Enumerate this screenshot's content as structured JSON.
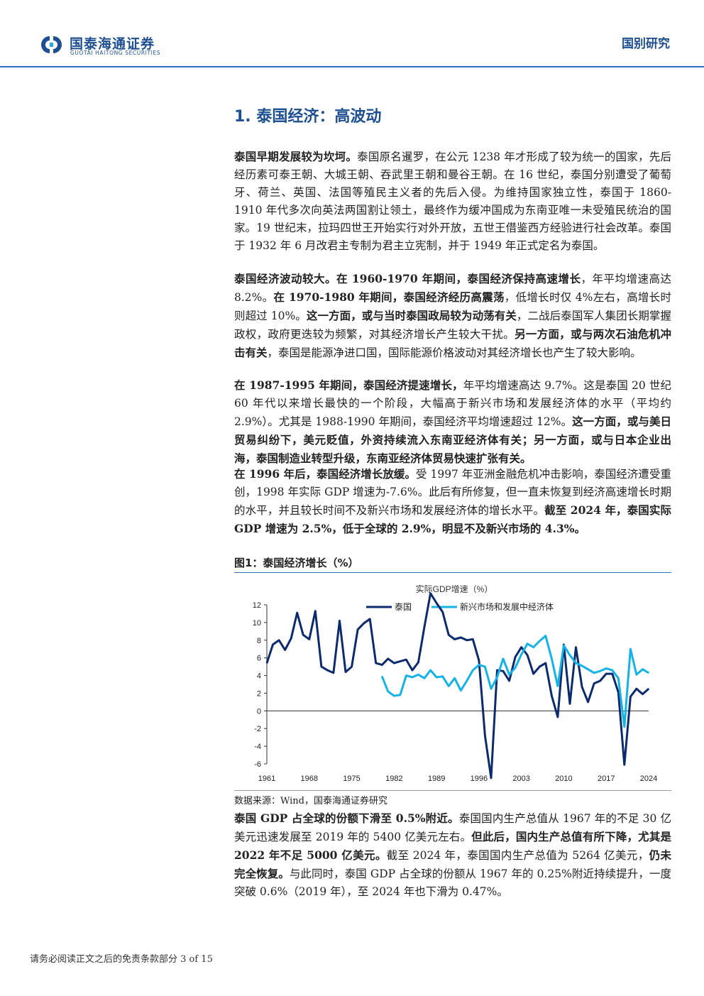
{
  "header": {
    "logo_cn": "国泰海通证券",
    "logo_en": "GUOTAI HAITONG SECURITIES",
    "report_type": "国别研究"
  },
  "section": {
    "title": "1. 泰国经济：高波动"
  },
  "paragraphs": [
    {
      "runs": [
        {
          "text": "泰国早期发展较为坎坷。",
          "bold": true
        },
        {
          "text": "泰国原名暹罗，在公元 1238 年才形成了较为统一的国家，先后经历素可泰王朝、大城王朝、吞武里王朝和曼谷王朝。在 16 世纪，泰国分别遭受了葡萄牙、荷兰、英国、法国等殖民主义者的先后入侵。为维持国家独立性，泰国于 1860-1910 年代多次向英法两国割让领土，最终作为缓冲国成为东南亚唯一未受殖民统治的国家。19 世纪末，拉玛四世王开始实行对外开放，五世王借鉴西方经验进行社会改革。泰国于 1932 年 6 月改君主专制为君主立宪制，并于 1949 年正式定名为泰国。",
          "bold": false
        }
      ]
    },
    {
      "runs": [
        {
          "text": "泰国经济波动较大。在 1960-1970 年期间，泰国经济保持高速增长",
          "bold": true
        },
        {
          "text": "，年平均增速高达 8.2%。",
          "bold": false
        },
        {
          "text": "在 1970-1980 年期间，泰国经济经历高震荡",
          "bold": true
        },
        {
          "text": "，低增长时仅 4%左右，高增长时则超过 10%。",
          "bold": false
        },
        {
          "text": "这一方面，或与当时泰国政局较为动荡有关",
          "bold": true
        },
        {
          "text": "，二战后泰国军人集团长期掌握政权，政府更迭较为频繁，对其经济增长产生较大干扰。",
          "bold": false
        },
        {
          "text": "另一方面，或与两次石油危机冲击有关",
          "bold": true
        },
        {
          "text": "，泰国是能源净进口国，国际能源价格波动对其经济增长也产生了较大影响。",
          "bold": false
        }
      ]
    },
    {
      "runs": [
        {
          "text": "在 1987-1995 年期间，泰国经济提速增长，",
          "bold": true
        },
        {
          "text": "年平均增速高达 9.7%。这是泰国 20 世纪 60 年代以来增长最快的一个阶段，大幅高于新兴市场和发展经济体的水平（平均约 2.9%）。尤其是 1988-1990 年期间，泰国经济平均增速超过 12%。",
          "bold": false
        },
        {
          "text": "这一方面，或与美日贸易纠纷下，美元贬值，外资持续流入东南亚经济体有关；另一方面，或与日本企业出海，泰国制造业转型升级，东南亚经济体贸易快速扩张有关。",
          "bold": true
        }
      ]
    },
    {
      "runs": [
        {
          "text": "在 1996 年后，泰国经济增长放缓。",
          "bold": true
        },
        {
          "text": "受 1997 年亚洲金融危机冲击影响，泰国经济遭受重创，1998 年实际 GDP 增速为-7.6%。此后有所修复，但一直未恢复到经济高速增长时期的水平，并且较长时间不及新兴市场和发展经济体的增长水平。",
          "bold": false
        },
        {
          "text": "截至 2024 年，泰国实际 GDP 增速为 2.5%，低于全球的 2.9%，明显不及新兴市场的 4.3%。",
          "bold": true
        }
      ]
    },
    {
      "runs": [
        {
          "text": "泰国 GDP 占全球的份额下滑至 0.5%附近。",
          "bold": true
        },
        {
          "text": "泰国国内生产总值从 1967 年的不足 30 亿美元迅速发展至 2019 年的 5400 亿美元左右。",
          "bold": false
        },
        {
          "text": "但此后，国内生产总值有所下降，尤其是 2022 年不足 5000 亿美元。",
          "bold": true
        },
        {
          "text": "截至 2024 年，泰国国内生产总值为 5264 亿美元，",
          "bold": false
        },
        {
          "text": "仍未完全恢复。",
          "bold": true
        },
        {
          "text": "与此同时，泰国 GDP 占全球的份额从 1967 年的 0.25%附近持续提升，一度突破 0.6%（2019 年），至 2024 年也下滑为 0.47%。",
          "bold": false
        }
      ]
    }
  ],
  "figure": {
    "title": "图1：泰国经济增长（%）",
    "source": "数据来源：Wind，国泰海通证券研究"
  },
  "chart_data": {
    "type": "line",
    "title": "实际GDP增速（%）",
    "xlabel": "",
    "ylabel": "",
    "xlim": [
      1961,
      2024
    ],
    "ylim": [
      -6,
      12
    ],
    "yticks": [
      "12",
      "10",
      "8",
      "6",
      "4",
      "2",
      "0",
      "-2",
      "-4",
      "-6"
    ],
    "xticks": [
      "1961",
      "1968",
      "1975",
      "1982",
      "1989",
      "1996",
      "2003",
      "2010",
      "2017",
      "2024"
    ],
    "legend_position": "top",
    "grid": false,
    "series": [
      {
        "name": "泰国",
        "color": "#0c2a6e",
        "x": [
          1961,
          1962,
          1963,
          1964,
          1965,
          1966,
          1967,
          1968,
          1969,
          1970,
          1971,
          1972,
          1973,
          1974,
          1975,
          1976,
          1977,
          1978,
          1979,
          1980,
          1981,
          1982,
          1983,
          1984,
          1985,
          1986,
          1987,
          1988,
          1989,
          1990,
          1991,
          1992,
          1993,
          1994,
          1995,
          1996,
          1997,
          1998,
          1999,
          2000,
          2001,
          2002,
          2003,
          2004,
          2005,
          2006,
          2007,
          2008,
          2009,
          2010,
          2011,
          2012,
          2013,
          2014,
          2015,
          2016,
          2017,
          2018,
          2019,
          2020,
          2021,
          2022,
          2023,
          2024
        ],
        "y": [
          5.4,
          7.5,
          8.0,
          6.9,
          8.2,
          11.1,
          8.6,
          8.1,
          11.3,
          5.0,
          4.6,
          4.3,
          10.2,
          4.4,
          5.0,
          9.2,
          9.9,
          10.4,
          5.4,
          5.2,
          5.9,
          5.4,
          5.6,
          5.8,
          4.6,
          5.5,
          9.5,
          13.3,
          12.2,
          11.2,
          8.6,
          8.1,
          8.3,
          8.0,
          8.1,
          5.7,
          -2.8,
          -7.6,
          4.6,
          4.5,
          3.4,
          6.1,
          7.2,
          6.3,
          4.2,
          5.0,
          5.4,
          1.7,
          -0.7,
          7.5,
          0.8,
          7.2,
          2.7,
          1.0,
          3.1,
          3.4,
          4.2,
          4.2,
          2.1,
          -6.1,
          1.6,
          2.5,
          1.9,
          2.5
        ]
      },
      {
        "name": "新兴市场和发展中经济体",
        "color": "#13b3e8",
        "x": [
          1980,
          1981,
          1982,
          1983,
          1984,
          1985,
          1986,
          1987,
          1988,
          1989,
          1990,
          1991,
          1992,
          1993,
          1994,
          1995,
          1996,
          1997,
          1998,
          1999,
          2000,
          2001,
          2002,
          2003,
          2004,
          2005,
          2006,
          2007,
          2008,
          2009,
          2010,
          2011,
          2012,
          2013,
          2014,
          2015,
          2016,
          2017,
          2018,
          2019,
          2020,
          2021,
          2022,
          2023,
          2024
        ],
        "y": [
          3.9,
          2.2,
          1.7,
          1.8,
          4.0,
          3.8,
          4.1,
          3.7,
          4.6,
          3.8,
          3.9,
          2.8,
          3.7,
          2.3,
          3.4,
          4.6,
          5.2,
          5.0,
          2.5,
          3.8,
          5.9,
          4.1,
          4.9,
          6.4,
          7.6,
          7.2,
          7.9,
          8.5,
          5.9,
          2.8,
          7.4,
          6.3,
          5.4,
          5.1,
          4.7,
          4.3,
          4.5,
          4.8,
          4.6,
          3.7,
          -1.8,
          7.0,
          4.1,
          4.7,
          4.3
        ]
      }
    ]
  },
  "footer": {
    "text": "请务必阅读正文之后的免责条款部分 3 of 15"
  }
}
